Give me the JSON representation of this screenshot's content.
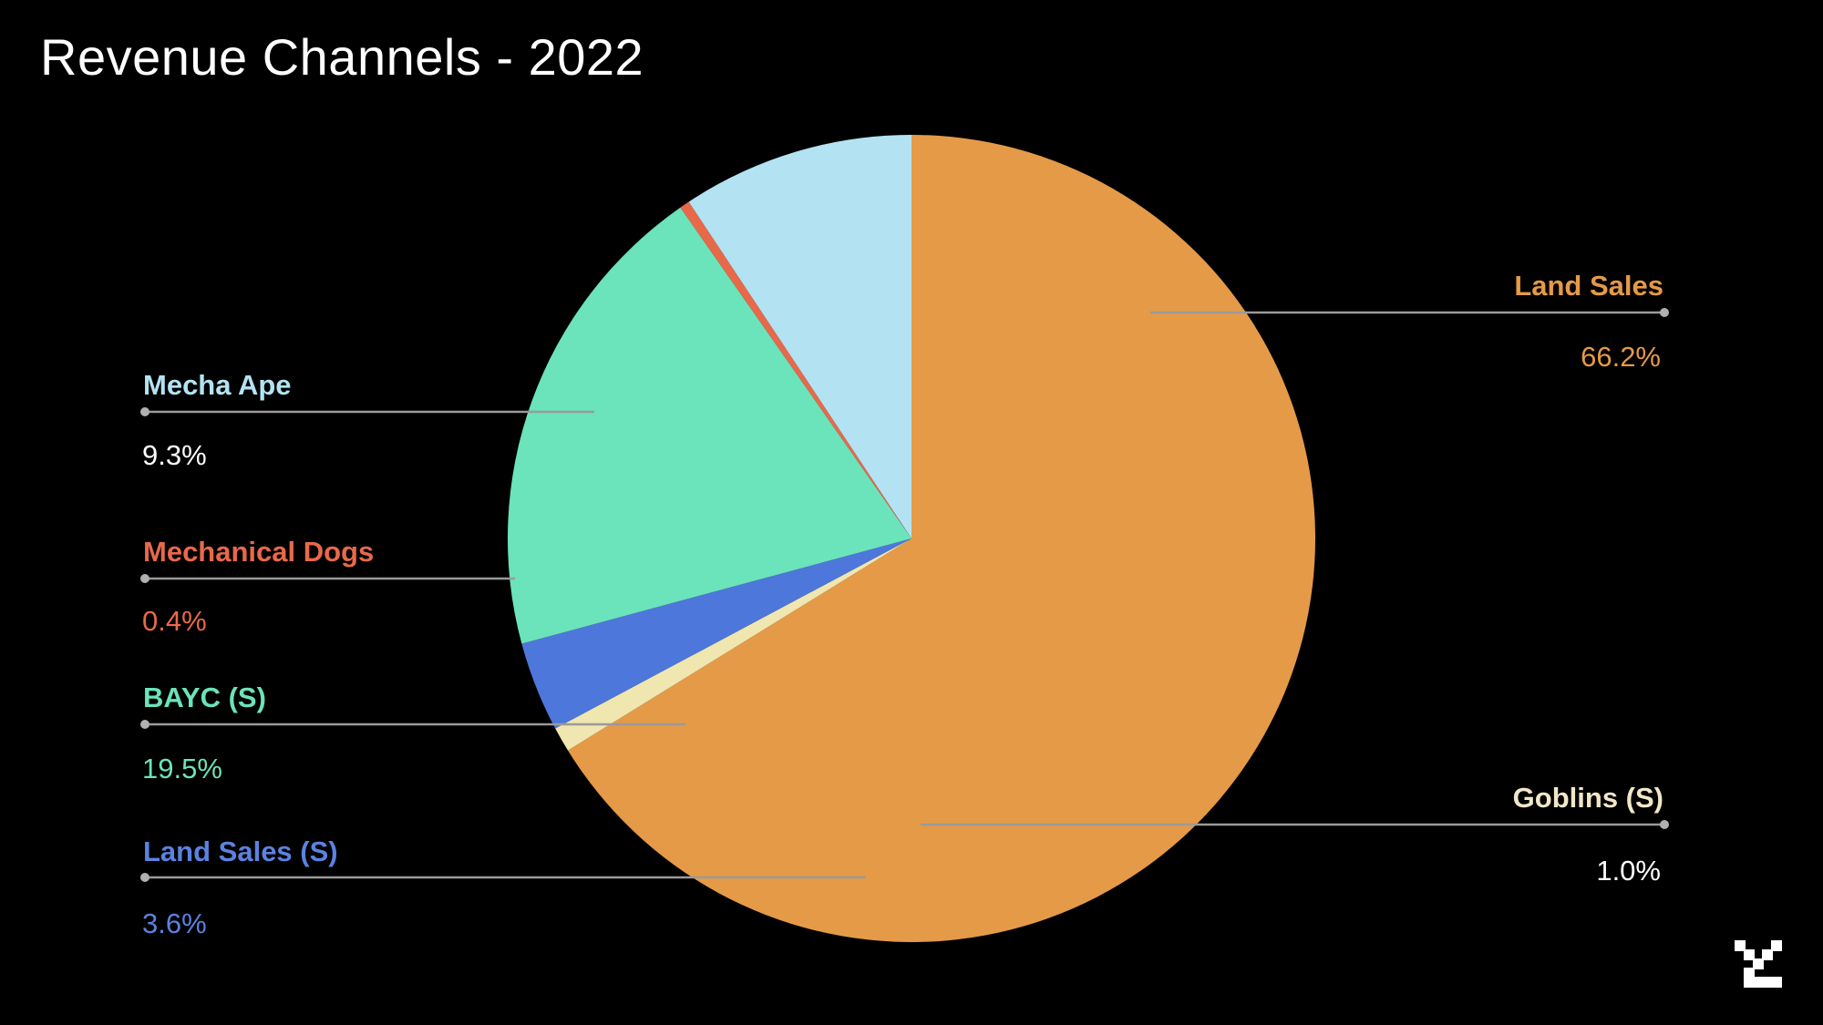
{
  "title": "Revenue Channels - 2022",
  "chart_data": {
    "type": "pie",
    "title": "Revenue Channels - 2022",
    "slices": [
      {
        "name": "Land Sales",
        "value": 66.2,
        "label": "66.2%",
        "color": "#E59A48",
        "name_color": "#E59A48",
        "pct_color": "#E59A48"
      },
      {
        "name": "Goblins (S)",
        "value": 1.0,
        "label": "1.0%",
        "color": "#EFE6B0",
        "name_color": "#F0E7C8",
        "pct_color": "#FFFFFF"
      },
      {
        "name": "Land Sales (S)",
        "value": 3.6,
        "label": "3.6%",
        "color": "#4E77DB",
        "name_color": "#5B82E0",
        "pct_color": "#5B82E0"
      },
      {
        "name": "BAYC (S)",
        "value": 19.5,
        "label": "19.5%",
        "color": "#6BE3BB",
        "name_color": "#6BE3BB",
        "pct_color": "#6BE3BB"
      },
      {
        "name": "Mechanical Dogs",
        "value": 0.4,
        "label": "0.4%",
        "color": "#E8694A",
        "name_color": "#E8694A",
        "pct_color": "#E8694A"
      },
      {
        "name": "Mecha Ape",
        "value": 9.3,
        "label": "9.3%",
        "color": "#B3E3F2",
        "name_color": "#B3E3F2",
        "pct_color": "#FFFFFF"
      }
    ],
    "legend": "leader-line labels around pie"
  },
  "logo_icon": "brand-mark-icon"
}
